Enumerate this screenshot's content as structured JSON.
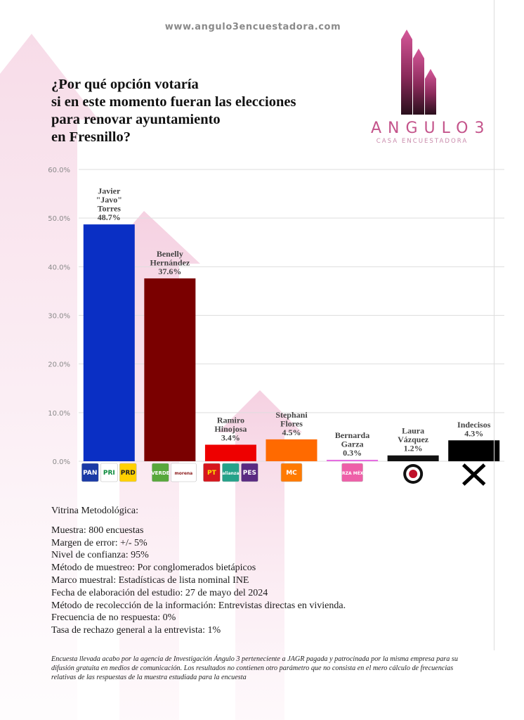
{
  "header": {
    "website": "www.angulo3encuestadora.com"
  },
  "question": {
    "lines": [
      "¿Por qué opción votaría",
      "si en este momento fueran las elecciones",
      "para renovar ayuntamiento",
      "en Fresnillo?"
    ]
  },
  "logo": {
    "word": "ANGULO3",
    "tagline": "CASA ENCUESTADORA"
  },
  "chart_data": {
    "type": "bar",
    "title": "",
    "xlabel": "",
    "ylabel": "",
    "ylim": [
      0,
      60
    ],
    "y_ticks": [
      "0.0%",
      "10.0%",
      "20.0%",
      "30.0%",
      "40.0%",
      "50.0%",
      "60.0%"
    ],
    "grid": true,
    "categories": [
      "Javier \"Javo\" Torres",
      "Benelly Hernández",
      "Ramiro Hinojosa",
      "Stephani Flores",
      "Bernarda Garza",
      "Laura Vázquez",
      "Indecisos"
    ],
    "name_lines": [
      [
        "Javier",
        "\"Javo\"",
        "Torres"
      ],
      [
        "Benelly",
        "Hernández"
      ],
      [
        "Ramiro",
        "Hinojosa"
      ],
      [
        "Stephani",
        "Flores"
      ],
      [
        "Bernarda",
        "Garza"
      ],
      [
        "Laura",
        "Vázquez"
      ],
      [
        "Indecisos"
      ]
    ],
    "values": [
      48.7,
      37.6,
      3.4,
      4.5,
      0.3,
      1.2,
      4.3
    ],
    "value_labels": [
      "48.7%",
      "37.6%",
      "3.4%",
      "4.5%",
      "0.3%",
      "1.2%",
      "4.3%"
    ],
    "colors": [
      "#0a2fc4",
      "#7a0000",
      "#ee0000",
      "#ff6a00",
      "#e56ee0",
      "#111111",
      "#000000"
    ],
    "party_logos": [
      [
        {
          "text": "PAN",
          "bg": "#1a3aa6",
          "fg": "#ffffff"
        },
        {
          "text": "PRI",
          "bg": "#ffffff",
          "fg": "#0a8a3a"
        },
        {
          "text": "PRD",
          "bg": "#ffd000",
          "fg": "#222222"
        }
      ],
      [
        {
          "text": "VERDE",
          "bg": "#58a83b",
          "fg": "#ffffff"
        },
        {
          "text": "morena",
          "bg": "#ffffff",
          "fg": "#8b1a1a"
        }
      ],
      [
        {
          "text": "PT",
          "bg": "#d6161d",
          "fg": "#ffe000"
        },
        {
          "text": "alianza",
          "bg": "#25a28a",
          "fg": "#ffffff"
        },
        {
          "text": "PES",
          "bg": "#5a2a82",
          "fg": "#ffffff"
        }
      ],
      [
        {
          "text": "MC",
          "bg": "#ff7a00",
          "fg": "#ffffff"
        }
      ],
      [
        {
          "text": "FUERZA MÉXICO",
          "bg": "#ee5fa8",
          "fg": "#ffffff"
        }
      ],
      [
        {
          "text": "",
          "bg": "#ffffff",
          "fg": "#000000"
        }
      ],
      [
        {
          "text": "X",
          "bg": "#ffffff",
          "fg": "#000000"
        }
      ]
    ],
    "legend": "none"
  },
  "methodology": {
    "title": "Vitrina Metodológica:",
    "lines": [
      "Muestra: 800 encuestas",
      "Margen de error: +/- 5%",
      "Nivel de confianza: 95%",
      "Método de muestreo: Por conglomerados bietápicos",
      "Marco muestral: Estadísticas de lista nominal INE",
      "Fecha de elaboración del estudio: 27 de mayo del 2024",
      "Método de recolección de la información: Entrevistas directas en vivienda.",
      "Frecuencia de no respuesta: 0%",
      "Tasa de rechazo general a la entrevista: 1%"
    ]
  },
  "disclaimer": "Encuesta llevada acabo por la agencia de Investigación Ángulo 3 perteneciente a JAGR pagada y patrocinada por la misma empresa para su difusión gratuita en medios de comunicación. Los resultados no contienen otro parámetro que no consista en el mero cálculo de frecuencias relativas de las respuestas de la muestra estudiada para la encuesta",
  "colors": {
    "brand_pink": "#c4548b",
    "brand_dark": "#2a1020",
    "grid": "#dedede"
  }
}
